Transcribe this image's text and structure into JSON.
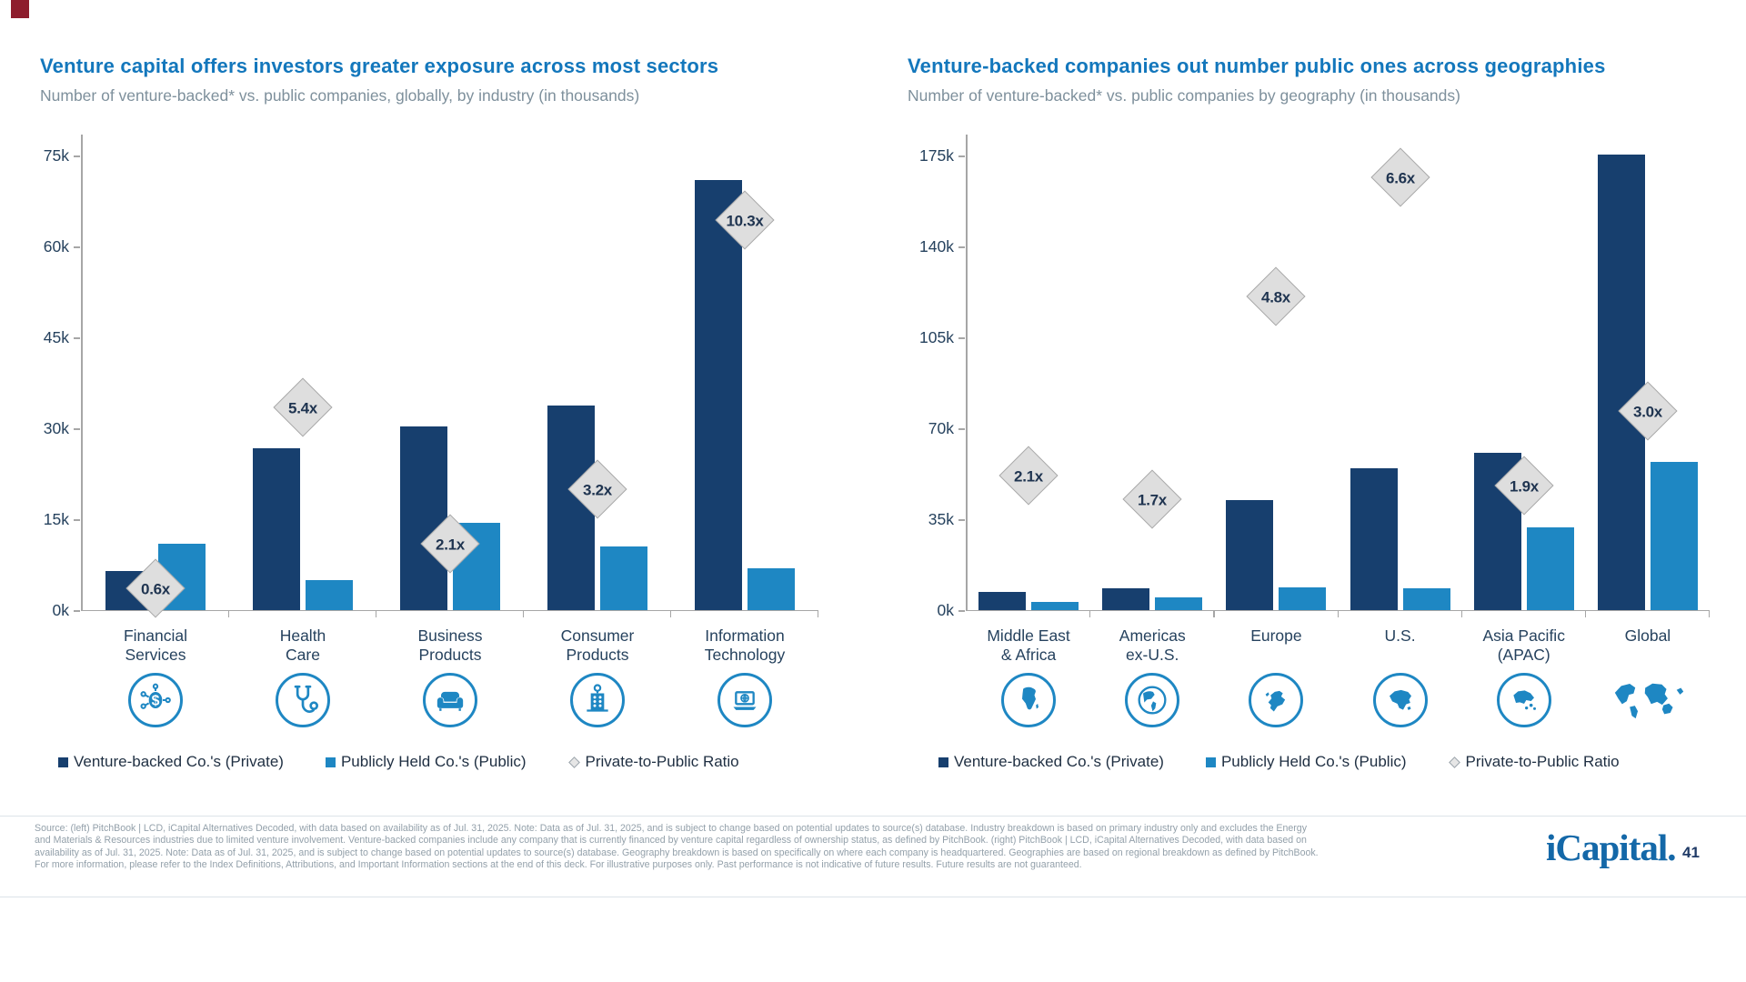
{
  "brand": {
    "logo": "iCapital.",
    "page": "41",
    "corner_color": "#8E1D2D"
  },
  "colors": {
    "private": "#173F6E",
    "public": "#1E87C3",
    "title_blue": "#1377BC",
    "subtitle_gray": "#7E909C",
    "diamond_fill": "#DEDEDE",
    "diamond_border": "#A9A9A9",
    "axis_gray": "#A6A6A6",
    "icon_blue": "#1E87C3"
  },
  "chart_data": [
    {
      "type": "bar",
      "title": "Venture capital offers investors greater exposure across most sectors",
      "subtitle": "Number of venture-backed* vs. public companies, globally, by industry (in thousands)",
      "categories": [
        "Financial Services",
        "Health Care",
        "Business Products",
        "Consumer Products",
        "Information Technology"
      ],
      "category_label_lines": [
        [
          "Financial",
          "Services"
        ],
        [
          "Health",
          "Care"
        ],
        [
          "Business",
          "Products"
        ],
        [
          "Consumer",
          "Products"
        ],
        [
          "Information",
          "Technology"
        ]
      ],
      "category_icons": [
        "money-network-icon",
        "stethoscope-icon",
        "sofa-icon",
        "building-icon",
        "laptop-globe-icon"
      ],
      "series": [
        {
          "name": "Venture-backed Co.'s (Private)",
          "color_key": "private",
          "values": [
            6.5,
            26.7,
            30.3,
            33.7,
            71.0
          ]
        },
        {
          "name": "Publicly Held Co.'s (Public)",
          "color_key": "public",
          "values": [
            10.9,
            5.0,
            14.4,
            10.5,
            6.9
          ]
        }
      ],
      "ratio_series_name": "Private-to-Public Ratio",
      "ratio_labels": [
        "0.6x",
        "5.4x",
        "2.1x",
        "3.2x",
        "10.3x"
      ],
      "ratio_marker_y_k": [
        3.7,
        33.6,
        11.1,
        20.1,
        64.5
      ],
      "unit": "thousands",
      "ylim": [
        0,
        75
      ],
      "yticks": [
        0,
        15,
        30,
        45,
        60,
        75
      ],
      "ytick_labels": [
        "0k",
        "15k",
        "30k",
        "45k",
        "60k",
        "75k"
      ],
      "legend_position": "bottom",
      "grid": false
    },
    {
      "type": "bar",
      "title": "Venture-backed companies out number public ones across geographies",
      "subtitle": "Number of venture-backed* vs. public companies by geography (in thousands)",
      "categories": [
        "Middle East & Africa",
        "Americas ex-U.S.",
        "Europe",
        "U.S.",
        "Asia Pacific (APAC)",
        "Global"
      ],
      "category_label_lines": [
        [
          "Middle East",
          "& Africa"
        ],
        [
          "Americas",
          "ex-U.S."
        ],
        [
          "Europe"
        ],
        [
          "U.S."
        ],
        [
          "Asia Pacific",
          "(APAC)"
        ],
        [
          "Global"
        ]
      ],
      "category_icons": [
        "africa-map-icon",
        "americas-globe-icon",
        "europe-map-icon",
        "us-map-icon",
        "apac-map-icon",
        "world-map-icon"
      ],
      "series": [
        {
          "name": "Venture-backed Co.'s (Private)",
          "color_key": "private",
          "values": [
            7.0,
            8.5,
            42.5,
            54.5,
            60.5,
            175.5
          ]
        },
        {
          "name": "Publicly Held Co.'s (Public)",
          "color_key": "public",
          "values": [
            3.3,
            5.0,
            8.9,
            8.3,
            32.0,
            57.0
          ]
        }
      ],
      "ratio_series_name": "Private-to-Public Ratio",
      "ratio_labels": [
        "2.1x",
        "1.7x",
        "4.8x",
        "6.6x",
        "1.9x",
        "3.0x"
      ],
      "ratio_marker_y_k": [
        52,
        43,
        121,
        167,
        48.3,
        77
      ],
      "unit": "thousands",
      "ylim": [
        0,
        175
      ],
      "yticks": [
        0,
        35,
        70,
        105,
        140,
        175
      ],
      "ytick_labels": [
        "0k",
        "35k",
        "70k",
        "105k",
        "140k",
        "175k"
      ],
      "legend_position": "bottom",
      "grid": false
    }
  ],
  "footer": {
    "lines": [
      "Source: (left) PitchBook | LCD, iCapital Alternatives Decoded, with data based on availability as of Jul. 31, 2025. Note: Data as of Jul. 31, 2025, and is subject to change based on potential updates to source(s) database. Industry breakdown is based on primary industry only and excludes the Energy",
      "and Materials & Resources industries due to limited venture involvement. Venture-backed companies include any company that is currently financed by venture capital regardless of ownership status, as defined by PitchBook. (right) PitchBook | LCD, iCapital Alternatives Decoded, with data based on",
      "availability as of Jul. 31, 2025. Note: Data as of Jul. 31, 2025, and is subject to change based on potential updates to source(s) database. Geography breakdown is based on specifically on where each company is headquartered. Geographies are based on regional breakdown as defined by PitchBook.",
      "For more information, please refer to the Index Definitions, Attributions, and Important Information sections at the end of this deck. For illustrative purposes only. Past performance is not indicative of future results. Future results are not guaranteed."
    ]
  }
}
